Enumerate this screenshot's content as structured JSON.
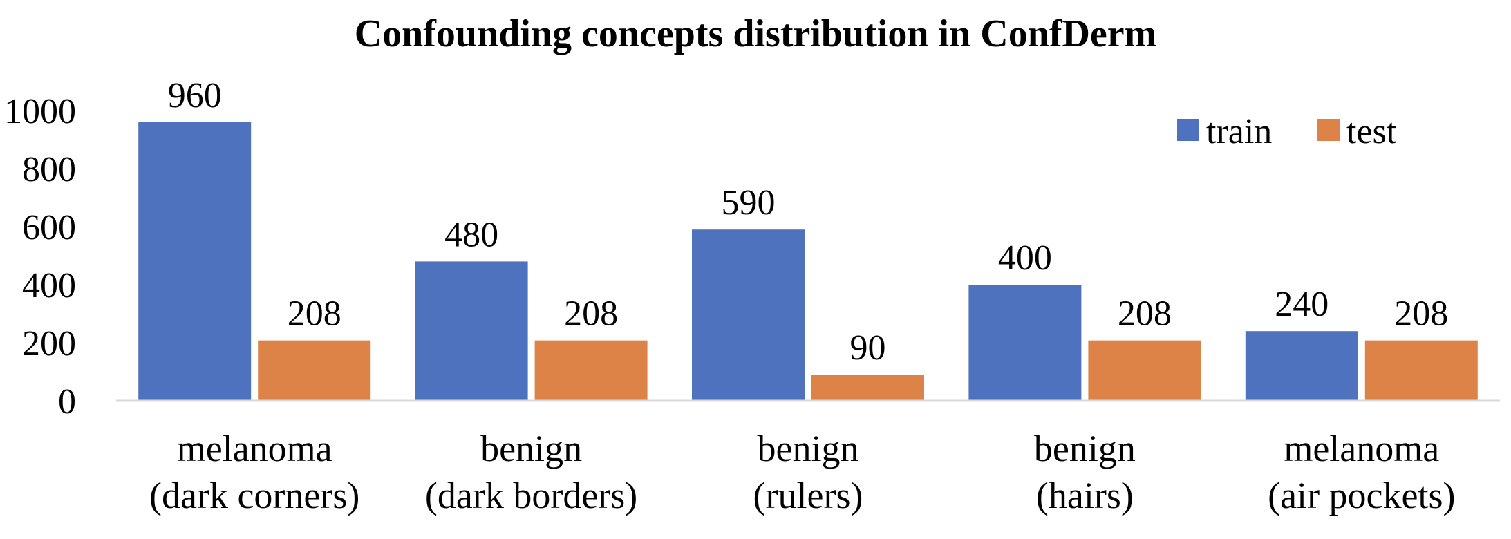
{
  "chart_data": {
    "type": "bar",
    "title": "Confounding concepts distribution in ConfDerm",
    "xlabel": "",
    "ylabel": "",
    "ylim": [
      0,
      1000
    ],
    "yticks": [
      0,
      200,
      400,
      600,
      800,
      1000
    ],
    "grid": false,
    "legend_position": "top-right",
    "categories": [
      [
        "melanoma",
        "(dark corners)"
      ],
      [
        "benign",
        "(dark borders)"
      ],
      [
        "benign",
        "(rulers)"
      ],
      [
        "benign",
        "(hairs)"
      ],
      [
        "melanoma",
        "(air pockets)"
      ]
    ],
    "series": [
      {
        "name": "train",
        "color": "#4f72be",
        "values": [
          960,
          480,
          590,
          400,
          240
        ]
      },
      {
        "name": "test",
        "color": "#dd8347",
        "values": [
          208,
          208,
          90,
          208,
          208
        ]
      }
    ],
    "data_labels": true
  }
}
